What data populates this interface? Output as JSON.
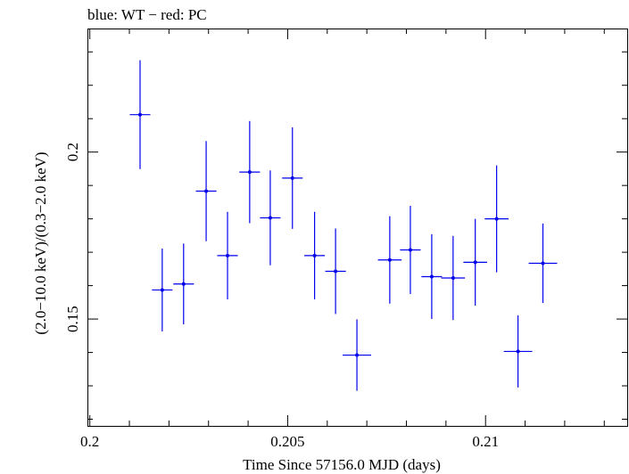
{
  "chart_data": {
    "type": "scatter",
    "title": "blue: WT − red: PC",
    "xlabel": "Time Since 57156.0 MJD (days)",
    "ylabel": "(2.0−10.0 keV)/(0.3−2.0 keV)",
    "xlim": [
      0.19994,
      0.21358
    ],
    "ylim": [
      0.118,
      0.237
    ],
    "x_ticks": [
      {
        "value": 0.2,
        "label": "0.2"
      },
      {
        "value": 0.205,
        "label": "0.205"
      },
      {
        "value": 0.21,
        "label": "0.21"
      }
    ],
    "y_ticks": [
      {
        "value": 0.15,
        "label": "0.15"
      },
      {
        "value": 0.2,
        "label": "0.2"
      }
    ],
    "series": [
      {
        "color": "#0000ee",
        "points": [
          {
            "x": 0.20127,
            "y": 0.2112,
            "xerr": 0.00026,
            "yerr": 0.0163
          },
          {
            "x": 0.20183,
            "y": 0.1587,
            "xerr": 0.00026,
            "yerr": 0.0124
          },
          {
            "x": 0.20237,
            "y": 0.1605,
            "xerr": 0.00026,
            "yerr": 0.0121
          },
          {
            "x": 0.20294,
            "y": 0.1883,
            "xerr": 0.00026,
            "yerr": 0.015
          },
          {
            "x": 0.20348,
            "y": 0.169,
            "xerr": 0.00026,
            "yerr": 0.0131
          },
          {
            "x": 0.20404,
            "y": 0.194,
            "xerr": 0.00026,
            "yerr": 0.0153
          },
          {
            "x": 0.20456,
            "y": 0.1803,
            "xerr": 0.00026,
            "yerr": 0.0142
          },
          {
            "x": 0.20512,
            "y": 0.1922,
            "xerr": 0.00026,
            "yerr": 0.0152
          },
          {
            "x": 0.20568,
            "y": 0.169,
            "xerr": 0.00026,
            "yerr": 0.0131
          },
          {
            "x": 0.20621,
            "y": 0.1643,
            "xerr": 0.00026,
            "yerr": 0.0128
          },
          {
            "x": 0.20675,
            "y": 0.1392,
            "xerr": 0.00036,
            "yerr": 0.0107
          },
          {
            "x": 0.20758,
            "y": 0.1677,
            "xerr": 0.0003,
            "yerr": 0.0131
          },
          {
            "x": 0.2081,
            "y": 0.1707,
            "xerr": 0.00026,
            "yerr": 0.0132
          },
          {
            "x": 0.20864,
            "y": 0.1627,
            "xerr": 0.00026,
            "yerr": 0.0127
          },
          {
            "x": 0.20918,
            "y": 0.1623,
            "xerr": 0.0003,
            "yerr": 0.0126
          },
          {
            "x": 0.20974,
            "y": 0.167,
            "xerr": 0.0003,
            "yerr": 0.013
          },
          {
            "x": 0.21028,
            "y": 0.18,
            "xerr": 0.0003,
            "yerr": 0.016
          },
          {
            "x": 0.21082,
            "y": 0.1403,
            "xerr": 0.00036,
            "yerr": 0.0108
          },
          {
            "x": 0.21145,
            "y": 0.1667,
            "xerr": 0.00036,
            "yerr": 0.0119
          }
        ]
      }
    ],
    "grid": false,
    "legend": "none"
  }
}
